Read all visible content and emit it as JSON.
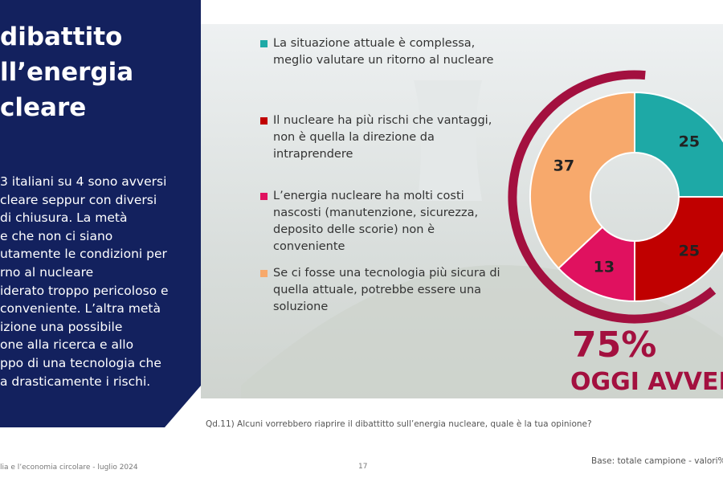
{
  "panel": {
    "title_lines": [
      "dibattito",
      "ll’energia",
      "cleare"
    ],
    "body_lines": [
      "3 italiani su 4 sono avversi",
      "cleare seppur con diversi",
      " di chiusura. La metà",
      "e che non ci siano",
      "utamente le condizioni per",
      "rno al nucleare",
      "iderato troppo pericoloso e",
      "conveniente. L’altra metà",
      "izione una possibile",
      "one alla ricerca e allo",
      "ppo di una tecnologia che",
      "a drasticamente i rischi."
    ]
  },
  "chart_data": {
    "type": "donut",
    "categories": [
      "La situazione attuale è complessa, meglio valutare un ritorno al nucleare",
      "Il nucleare ha più rischi che vantaggi, non è quella la direzione da intraprendere",
      "L’energia nucleare ha molti costi nascosti (manutenzione, sicurezza, deposito delle scorie) non è conveniente",
      "Se ci fosse una tecnologia più sicura di quella attuale, potrebbe essere una soluzione"
    ],
    "values": [
      25,
      25,
      13,
      37
    ],
    "colors": [
      "#1ea9a6",
      "#c00000",
      "#e0115f",
      "#f7a96c"
    ]
  },
  "highlight": {
    "figure": "75%",
    "caption": "OGGI AVVERS"
  },
  "footer": {
    "question": "Qd.11) Alcuni vorrebbero riaprire il dibattitto sull’energia nucleare, quale è la tua opinione?",
    "source": "lia e l’economia circolare - luglio 2024",
    "page": "17",
    "base": "Base: totale campione - valori%"
  }
}
